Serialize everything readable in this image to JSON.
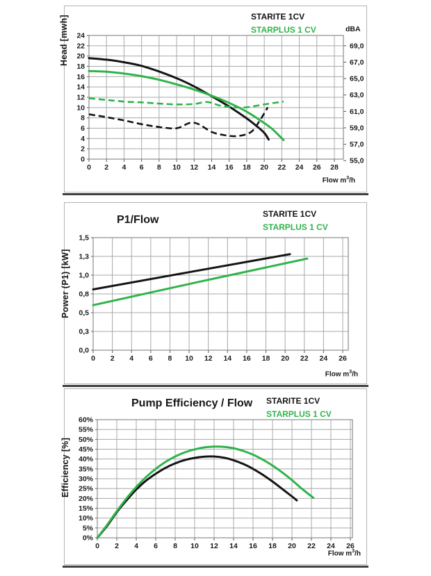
{
  "colors": {
    "starite": "#141414",
    "starplus": "#2eb34a",
    "grid": "#a8a8a8",
    "plot_border": "#8c8c8c",
    "tick": "#555555",
    "panel_border": "#b3b3b3",
    "underline": "#3e3e3e"
  },
  "legend": {
    "starite": "STARITE 1CV",
    "starplus": "STARPLUS 1 CV"
  },
  "labels": {
    "dba": "dBA",
    "flow_prefix": "Flow m",
    "flow_sup": "3",
    "flow_suffix": "/h"
  },
  "chart_data": [
    {
      "id": "head_flow",
      "type": "line",
      "title": "",
      "y_axis_label": "Head [mwh]",
      "right_axis_label": "dBA",
      "x_axis_label": "Flow m3/h",
      "x_ticks": {
        "min": 0,
        "max": 28,
        "labels": [
          "0",
          "2",
          "4",
          "6",
          "8",
          "10",
          "12",
          "14",
          "16",
          "18",
          "20",
          "22",
          "24",
          "26",
          "28"
        ]
      },
      "y_ticks": {
        "min": 0,
        "max": 24,
        "labels": [
          "0",
          "2",
          "4",
          "6",
          "8",
          "10",
          "12",
          "14",
          "16",
          "18",
          "20",
          "22",
          "24"
        ]
      },
      "right_ticks": {
        "min": 55,
        "max": 69,
        "head_at_min": -0.3,
        "head_at_max": 22.0,
        "labels": [
          "55,0",
          "57,0",
          "59,0",
          "61,0",
          "63,0",
          "65,0",
          "67,0",
          "69,0"
        ]
      },
      "series": [
        {
          "name": "STARITE 1CV head",
          "color": "starite",
          "style": "solid",
          "axis": "left",
          "smooth": true,
          "points": [
            [
              0,
              19.6
            ],
            [
              2,
              19.3
            ],
            [
              4,
              18.8
            ],
            [
              6,
              18.1
            ],
            [
              8,
              17.0
            ],
            [
              10,
              15.7
            ],
            [
              12,
              14.1
            ],
            [
              14,
              12.2
            ],
            [
              16,
              10.2
            ],
            [
              18,
              7.9
            ],
            [
              19,
              6.6
            ],
            [
              20,
              5.1
            ],
            [
              20.5,
              3.8
            ]
          ]
        },
        {
          "name": "STARPLUS 1 CV head",
          "color": "starplus",
          "style": "solid",
          "axis": "left",
          "smooth": true,
          "points": [
            [
              0,
              17.1
            ],
            [
              2,
              16.95
            ],
            [
              4,
              16.6
            ],
            [
              6,
              16.1
            ],
            [
              8,
              15.4
            ],
            [
              10,
              14.5
            ],
            [
              12,
              13.5
            ],
            [
              14,
              12.3
            ],
            [
              16,
              10.9
            ],
            [
              18,
              9.2
            ],
            [
              20,
              7.0
            ],
            [
              21,
              5.7
            ],
            [
              22.2,
              3.7
            ]
          ]
        },
        {
          "name": "STARPLUS 1 CV dBA",
          "color": "starplus",
          "style": "dashed",
          "axis": "right",
          "smooth": true,
          "points": [
            [
              0,
              62.6
            ],
            [
              2,
              62.4
            ],
            [
              4,
              62.2
            ],
            [
              6,
              62.1
            ],
            [
              8,
              61.95
            ],
            [
              10,
              61.85
            ],
            [
              12,
              61.9
            ],
            [
              13.5,
              62.15
            ],
            [
              15,
              61.7
            ],
            [
              16.5,
              61.5
            ],
            [
              18,
              61.5
            ],
            [
              20,
              61.85
            ],
            [
              22.2,
              62.2
            ]
          ]
        },
        {
          "name": "STARITE 1CV dBA",
          "color": "starite",
          "style": "dashed",
          "axis": "right",
          "smooth": true,
          "points": [
            [
              0,
              60.65
            ],
            [
              2,
              60.3
            ],
            [
              4,
              59.9
            ],
            [
              6,
              59.45
            ],
            [
              8,
              59.1
            ],
            [
              10,
              58.95
            ],
            [
              11.5,
              59.6
            ],
            [
              12.5,
              59.45
            ],
            [
              14,
              58.5
            ],
            [
              15.5,
              58.1
            ],
            [
              17,
              58.0
            ],
            [
              18.5,
              58.5
            ],
            [
              19.5,
              59.9
            ],
            [
              20.4,
              61.5
            ]
          ]
        }
      ]
    },
    {
      "id": "p1_flow",
      "type": "line",
      "title": "P1/Flow",
      "y_axis_label": "Power (P1) [kW]",
      "x_axis_label": "Flow m3/h",
      "x_ticks": {
        "min": 0,
        "max": 26,
        "labels": [
          "0",
          "2",
          "4",
          "6",
          "8",
          "10",
          "12",
          "14",
          "16",
          "18",
          "20",
          "22",
          "24",
          "26"
        ]
      },
      "y_ticks": {
        "min": 0,
        "max": 1.5,
        "labels": [
          "0,0",
          "0,3",
          "0,5",
          "0,8",
          "1,0",
          "1,3",
          "1,5"
        ]
      },
      "series": [
        {
          "name": "STARITE 1CV power",
          "color": "starite",
          "style": "solid",
          "axis": "left",
          "smooth": false,
          "points": [
            [
              0,
              0.81
            ],
            [
              10,
              1.04
            ],
            [
              20.5,
              1.28
            ]
          ]
        },
        {
          "name": "STARPLUS 1 CV power",
          "color": "starplus",
          "style": "solid",
          "axis": "left",
          "smooth": false,
          "points": [
            [
              0,
              0.6
            ],
            [
              11,
              0.91
            ],
            [
              22.3,
              1.22
            ]
          ]
        }
      ]
    },
    {
      "id": "efficiency_flow",
      "type": "line",
      "title": "Pump Efficiency / Flow",
      "y_axis_label": "Efficiency [%]",
      "x_axis_label": "Flow m3/h",
      "x_ticks": {
        "min": 0,
        "max": 26,
        "labels": [
          "0",
          "2",
          "4",
          "6",
          "8",
          "10",
          "12",
          "14",
          "16",
          "18",
          "20",
          "22",
          "24",
          "26"
        ]
      },
      "y_ticks": {
        "min": 0,
        "max": 60,
        "labels": [
          "0%",
          "5%",
          "10%",
          "15%",
          "20%",
          "25%",
          "30%",
          "35%",
          "40%",
          "45%",
          "50%",
          "55%",
          "60%"
        ]
      },
      "series": [
        {
          "name": "STARITE 1CV efficiency",
          "color": "starite",
          "style": "solid",
          "axis": "left",
          "smooth": true,
          "points": [
            [
              0,
              0
            ],
            [
              1,
              6
            ],
            [
              2,
              13
            ],
            [
              3,
              19
            ],
            [
              4,
              24.5
            ],
            [
              5,
              29
            ],
            [
              6,
              32.5
            ],
            [
              7,
              35.5
            ],
            [
              8,
              37.8
            ],
            [
              9,
              39.5
            ],
            [
              10,
              40.6
            ],
            [
              11,
              41.2
            ],
            [
              12,
              41.3
            ],
            [
              13,
              40.7
            ],
            [
              14,
              39.4
            ],
            [
              15,
              37.5
            ],
            [
              16,
              35
            ],
            [
              17,
              32
            ],
            [
              18,
              28.6
            ],
            [
              19,
              24.8
            ],
            [
              20,
              21
            ],
            [
              20.5,
              19
            ]
          ]
        },
        {
          "name": "STARPLUS 1 CV efficiency",
          "color": "starplus",
          "style": "solid",
          "axis": "left",
          "smooth": true,
          "points": [
            [
              0,
              0
            ],
            [
              1,
              6.5
            ],
            [
              2,
              13.5
            ],
            [
              3,
              20
            ],
            [
              4,
              25.8
            ],
            [
              5,
              30.8
            ],
            [
              6,
              35
            ],
            [
              7,
              38.5
            ],
            [
              8,
              41.3
            ],
            [
              9,
              43.4
            ],
            [
              10,
              44.9
            ],
            [
              11,
              45.9
            ],
            [
              12,
              46.3
            ],
            [
              13,
              46.2
            ],
            [
              14,
              45.5
            ],
            [
              15,
              44.1
            ],
            [
              16,
              42.2
            ],
            [
              17,
              39.7
            ],
            [
              18,
              36.7
            ],
            [
              19,
              33.2
            ],
            [
              20,
              29.3
            ],
            [
              21,
              25
            ],
            [
              22.2,
              20.3
            ]
          ]
        }
      ]
    }
  ]
}
